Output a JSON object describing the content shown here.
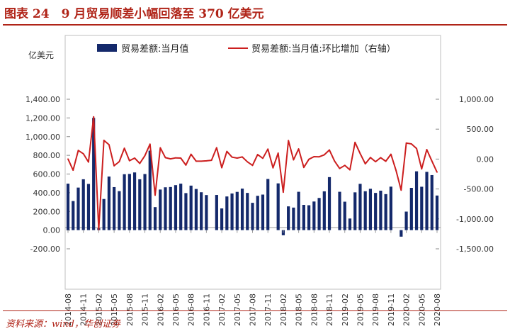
{
  "header": {
    "figure_title": "图表 24　9 月贸易顺差小幅回落至 370 亿美元"
  },
  "footer": {
    "source": "资料来源：wind，华创证券"
  },
  "colors": {
    "title": "#b02418",
    "bar": "#14296b",
    "line": "#cc1f1f"
  },
  "chart_data": {
    "type": "bar",
    "title": "",
    "ylabel": "亿美元",
    "ylim": [
      -200,
      1400
    ],
    "y2lim": [
      -1500,
      1000
    ],
    "yticks": [
      "-200.00",
      "0.00",
      "200.00",
      "400.00",
      "600.00",
      "800.00",
      "1,000.00",
      "1,200.00",
      "1,400.00"
    ],
    "y2ticks": [
      "-1,500.00",
      "-1,000.00",
      "-500.00",
      "0.00",
      "500.00",
      "1,000.00"
    ],
    "xticks": [
      "2014-08",
      "2014-11",
      "2015-02",
      "2015-05",
      "2015-08",
      "2015-11",
      "2016-02",
      "2016-05",
      "2016-08",
      "2016-11",
      "2017-02",
      "2017-05",
      "2017-08",
      "2017-11",
      "2018-02",
      "2018-05",
      "2018-08",
      "2018-11",
      "2019-02",
      "2019-05",
      "2019-08",
      "2019-11",
      "2020-02",
      "2020-05",
      "2020-08"
    ],
    "legend": [
      "贸易差额:当月值",
      "贸易差额:当月值:环比增加（右轴）"
    ],
    "legend_position": "top",
    "series": [
      {
        "name": "贸易差额:当月值",
        "type": "bar",
        "axis": "left",
        "values": [
          497,
          311,
          455,
          544,
          494,
          1200,
          20,
          333,
          573,
          460,
          417,
          598,
          601,
          617,
          544,
          600,
          850,
          246,
          434,
          458,
          461,
          481,
          497,
          396,
          476,
          440,
          405,
          375,
          0,
          376,
          232,
          360,
          392,
          409,
          444,
          398,
          292,
          367,
          380,
          547,
          0,
          500,
          -55,
          254,
          241,
          410,
          270,
          266,
          306,
          344,
          415,
          567,
          0,
          410,
          304,
          124,
          404,
          495,
          416,
          442,
          398,
          422,
          385,
          465,
          0,
          -70,
          198,
          452,
          629,
          464,
          623,
          589,
          370
        ]
      },
      {
        "name": "贸易差额:当月值:环比增加（右轴）",
        "type": "line",
        "axis": "right",
        "values": [
          2,
          -186,
          144,
          89,
          -50,
          706,
          -1180,
          313,
          240,
          -113,
          -43,
          181,
          -27,
          16,
          -73,
          56,
          250,
          -604,
          188,
          24,
          3,
          20,
          16,
          -101,
          80,
          -36,
          -35,
          -30,
          -20,
          190,
          -144,
          128,
          32,
          17,
          35,
          -46,
          -106,
          75,
          13,
          167,
          -147,
          100,
          -555,
          309,
          -13,
          169,
          -140,
          -4,
          40,
          38,
          71,
          152,
          -33,
          -157,
          -106,
          -180,
          280,
          91,
          -79,
          26,
          -44,
          24,
          -37,
          80,
          -190,
          -520,
          268,
          254,
          177,
          -165,
          159,
          -34,
          -219
        ]
      }
    ]
  }
}
